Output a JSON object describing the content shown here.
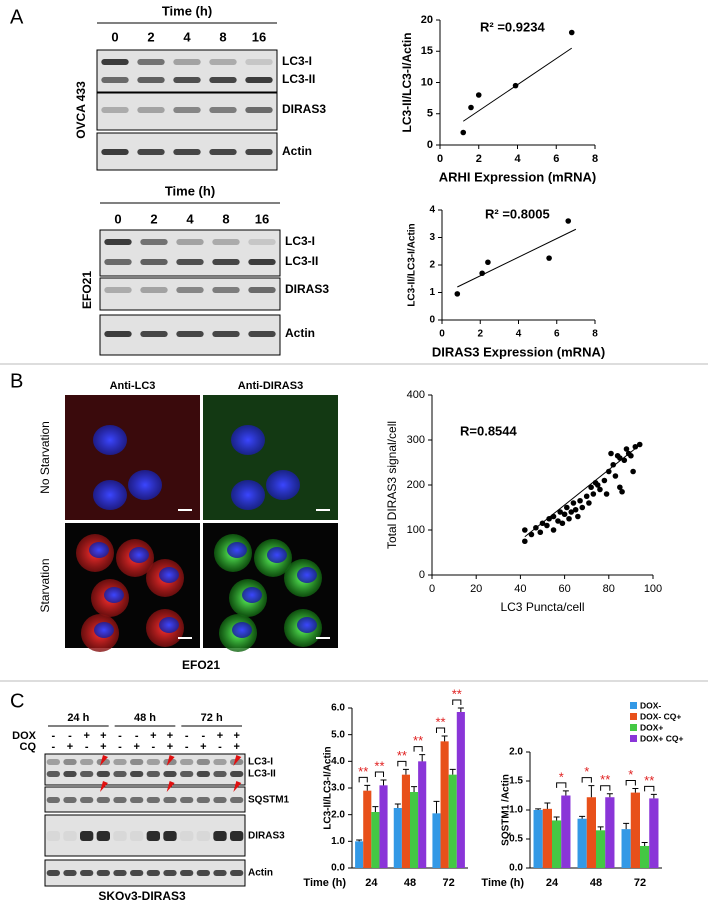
{
  "panel_labels": [
    "A",
    "B",
    "C"
  ],
  "blot_a1": {
    "time_label": "Time (h)",
    "lanes": [
      "0",
      "2",
      "4",
      "8",
      "16"
    ],
    "bands": [
      "LC3-I",
      "LC3-II",
      "DIRAS3",
      "Actin"
    ],
    "cell_line": "OVCA 433"
  },
  "blot_a2": {
    "time_label": "Time (h)",
    "lanes": [
      "0",
      "2",
      "4",
      "8",
      "16"
    ],
    "bands": [
      "LC3-I",
      "LC3-II",
      "DIRAS3",
      "Actin"
    ],
    "cell_line": "EFO21"
  },
  "imaging": {
    "columns": [
      "Anti-LC3",
      "Anti-DIRAS3"
    ],
    "rows": [
      "No Starvation",
      "Starvation"
    ],
    "cell_line": "EFO21"
  },
  "blot_c": {
    "times": [
      "24 h",
      "48 h",
      "72 h"
    ],
    "rows": [
      {
        "label": "DOX",
        "signs": [
          "-",
          "-",
          "+",
          "+"
        ]
      },
      {
        "label": "CQ",
        "signs": [
          "-",
          "+",
          "-",
          "+"
        ]
      }
    ],
    "bands": [
      "LC3-I",
      "LC3-II",
      "SQSTM1",
      "DIRAS3",
      "Actin"
    ],
    "cell_line": "SKOv3-DIRAS3"
  },
  "chart_data": [
    {
      "type": "scatter",
      "annotation": "R² =0.9234",
      "xlabel": "ARHI Expression (mRNA)",
      "ylabel": "LC3-II/LC3-I/Actin",
      "x": [
        1.2,
        1.6,
        2.0,
        3.9,
        6.8
      ],
      "y": [
        2,
        6,
        8,
        9.5,
        18
      ],
      "color": "#000000",
      "fit": {
        "x": [
          1.2,
          6.8
        ],
        "y": [
          3.8,
          15.5
        ]
      },
      "xlim": [
        0,
        8
      ],
      "xticks": [
        0,
        2,
        4,
        6,
        8
      ],
      "ylim": [
        0,
        20
      ],
      "yticks": [
        0,
        5,
        10,
        15,
        20
      ]
    },
    {
      "type": "scatter",
      "annotation": "R² =0.8005",
      "xlabel": "DIRAS3 Expression (mRNA)",
      "ylabel": "LC3-II/LC3-I/Actin",
      "x": [
        0.8,
        2.1,
        2.4,
        5.6,
        6.6
      ],
      "y": [
        0.95,
        1.7,
        2.1,
        2.25,
        3.6
      ],
      "color": "#000000",
      "fit": {
        "x": [
          0.8,
          7.0
        ],
        "y": [
          1.2,
          3.3
        ]
      },
      "xlim": [
        0,
        8
      ],
      "xticks": [
        0,
        2,
        4,
        6,
        8
      ],
      "ylim": [
        0,
        4
      ],
      "yticks": [
        0,
        1,
        2,
        3,
        4
      ]
    },
    {
      "type": "scatter",
      "annotation": "R=0.8544",
      "xlabel": "LC3 Puncta/cell",
      "ylabel": "Total DIRAS3 signal/cell",
      "x": [
        42,
        42,
        45,
        47,
        49,
        50,
        52,
        53,
        55,
        55,
        57,
        58,
        59,
        60,
        61,
        62,
        63,
        64,
        65,
        66,
        67,
        68,
        70,
        71,
        72,
        73,
        74,
        75,
        76,
        78,
        79,
        80,
        81,
        82,
        84,
        85,
        85,
        86,
        87,
        88,
        89,
        90,
        91,
        92,
        94,
        83
      ],
      "y": [
        75,
        100,
        90,
        105,
        95,
        115,
        110,
        125,
        100,
        130,
        120,
        140,
        115,
        135,
        150,
        125,
        140,
        160,
        145,
        130,
        165,
        150,
        175,
        160,
        195,
        180,
        205,
        200,
        190,
        210,
        180,
        230,
        270,
        245,
        265,
        260,
        195,
        185,
        255,
        280,
        270,
        265,
        230,
        285,
        290,
        220
      ],
      "color": "#000000",
      "fit": {
        "x": [
          42,
          93
        ],
        "y": [
          85,
          285
        ]
      },
      "xlim": [
        0,
        100
      ],
      "xticks": [
        0,
        20,
        40,
        60,
        80,
        100
      ],
      "ylim": [
        0,
        400
      ],
      "yticks": [
        0,
        100,
        200,
        300,
        400
      ]
    },
    {
      "type": "bar",
      "xlabel": "Time (h)",
      "ylabel": "LC3-II/LC3-I/Actin",
      "categories": [
        "24",
        "48",
        "72"
      ],
      "series": [
        {
          "color": "#3399e6",
          "values": [
            1.0,
            2.25,
            2.05
          ],
          "errors": [
            0.05,
            0.15,
            0.45
          ]
        },
        {
          "color": "#e8501a",
          "values": [
            2.9,
            3.5,
            4.75
          ],
          "errors": [
            0.2,
            0.2,
            0.2
          ]
        },
        {
          "color": "#44c844",
          "values": [
            2.1,
            2.85,
            3.5
          ],
          "errors": [
            0.2,
            0.2,
            0.2
          ]
        },
        {
          "color": "#8a35d8",
          "values": [
            3.1,
            4.0,
            5.85
          ],
          "errors": [
            0.2,
            0.25,
            0.15
          ]
        }
      ],
      "significance": [
        {
          "category": 0,
          "series": [
            0,
            1
          ],
          "label": "**"
        },
        {
          "category": 0,
          "series": [
            2,
            3
          ],
          "label": "**"
        },
        {
          "category": 1,
          "series": [
            0,
            1
          ],
          "label": "**"
        },
        {
          "category": 1,
          "series": [
            2,
            3
          ],
          "label": "**"
        },
        {
          "category": 2,
          "series": [
            0,
            1
          ],
          "label": "**"
        },
        {
          "category": 2,
          "series": [
            2,
            3
          ],
          "label": "**"
        }
      ],
      "ylim": [
        0,
        6
      ],
      "yticks": [
        {
          "value": 0,
          "label": "0.0"
        },
        {
          "value": 1,
          "label": "1.0"
        },
        {
          "value": 2,
          "label": "2.0"
        },
        {
          "value": 3,
          "label": "3.0"
        },
        {
          "value": 4,
          "label": "4.0"
        },
        {
          "value": 5,
          "label": "5.0"
        },
        {
          "value": 6,
          "label": "6.0"
        }
      ]
    },
    {
      "type": "bar",
      "xlabel": "Time (h)",
      "ylabel": "SQSTM1 /Actin",
      "categories": [
        "24",
        "48",
        "72"
      ],
      "series": [
        {
          "name": "DOX-",
          "color": "#3399e6",
          "values": [
            1.0,
            0.85,
            0.67
          ],
          "errors": [
            0.02,
            0.04,
            0.1
          ]
        },
        {
          "name": "DOX- CQ+",
          "color": "#e8501a",
          "values": [
            1.02,
            1.22,
            1.3
          ],
          "errors": [
            0.1,
            0.2,
            0.07
          ]
        },
        {
          "name": "DOX+",
          "color": "#44c844",
          "values": [
            0.82,
            0.65,
            0.38
          ],
          "errors": [
            0.06,
            0.06,
            0.06
          ]
        },
        {
          "name": "DOX+ CQ+",
          "color": "#8a35d8",
          "values": [
            1.25,
            1.22,
            1.2
          ],
          "errors": [
            0.08,
            0.06,
            0.07
          ]
        }
      ],
      "significance": [
        {
          "category": 0,
          "series": [
            2,
            3
          ],
          "label": "*"
        },
        {
          "category": 1,
          "series": [
            0,
            1
          ],
          "label": "*"
        },
        {
          "category": 1,
          "series": [
            2,
            3
          ],
          "label": "**"
        },
        {
          "category": 2,
          "series": [
            0,
            1
          ],
          "label": "*"
        },
        {
          "category": 2,
          "series": [
            2,
            3
          ],
          "label": "**"
        }
      ],
      "legend": "upper right",
      "ylim": [
        0,
        2
      ],
      "yticks": [
        {
          "value": 0,
          "label": "0.0"
        },
        {
          "value": 0.5,
          "label": "0.5"
        },
        {
          "value": 1,
          "label": "1.0"
        },
        {
          "value": 1.5,
          "label": "1.5"
        },
        {
          "value": 2,
          "label": "2.0"
        }
      ]
    }
  ]
}
